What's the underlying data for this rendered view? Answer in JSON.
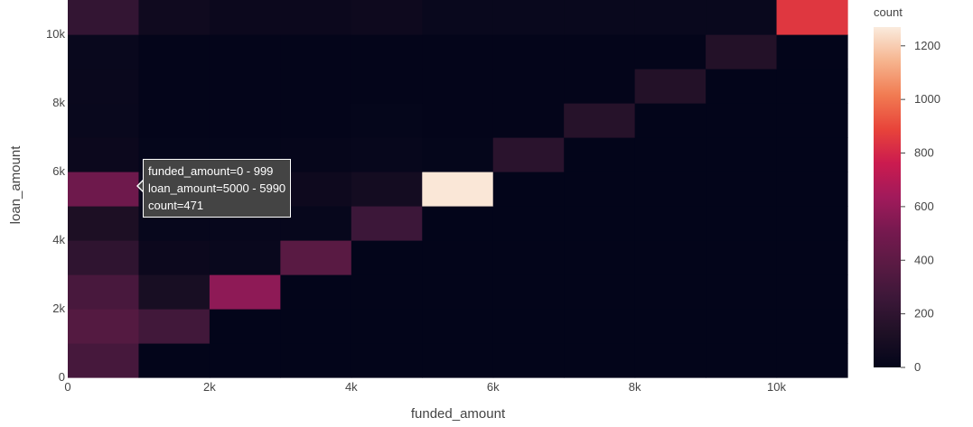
{
  "chart_data": {
    "type": "heatmap",
    "xlabel": "funded_amount",
    "ylabel": "loan_amount",
    "x_bins": [
      0,
      1000,
      2000,
      3000,
      4000,
      5000,
      6000,
      7000,
      8000,
      9000,
      10000,
      11000
    ],
    "y_bins": [
      0,
      1000,
      2000,
      3000,
      4000,
      5000,
      6000,
      7000,
      8000,
      9000,
      10000,
      11000
    ],
    "xlim": [
      0,
      11000
    ],
    "ylim": [
      0,
      11000
    ],
    "x_ticks": [
      {
        "value": 0,
        "label": "0"
      },
      {
        "value": 2000,
        "label": "2k"
      },
      {
        "value": 4000,
        "label": "4k"
      },
      {
        "value": 6000,
        "label": "6k"
      },
      {
        "value": 8000,
        "label": "8k"
      },
      {
        "value": 10000,
        "label": "10k"
      }
    ],
    "y_ticks": [
      {
        "value": 0,
        "label": "0"
      },
      {
        "value": 2000,
        "label": "2k"
      },
      {
        "value": 4000,
        "label": "4k"
      },
      {
        "value": 6000,
        "label": "6k"
      },
      {
        "value": 8000,
        "label": "8k"
      },
      {
        "value": 10000,
        "label": "10k"
      }
    ],
    "z": [
      [
        300,
        0,
        0,
        0,
        0,
        0,
        0,
        0,
        0,
        0,
        0
      ],
      [
        360,
        280,
        0,
        0,
        0,
        0,
        0,
        0,
        0,
        0,
        0
      ],
      [
        310,
        100,
        580,
        0,
        0,
        0,
        0,
        0,
        0,
        0,
        0
      ],
      [
        200,
        40,
        30,
        380,
        0,
        0,
        0,
        0,
        0,
        0,
        0
      ],
      [
        120,
        20,
        20,
        20,
        260,
        0,
        0,
        0,
        0,
        0,
        0
      ],
      [
        471,
        30,
        40,
        50,
        80,
        1260,
        0,
        0,
        0,
        0,
        0
      ],
      [
        40,
        10,
        10,
        15,
        20,
        10,
        180,
        0,
        0,
        0,
        0
      ],
      [
        30,
        5,
        5,
        5,
        10,
        5,
        5,
        160,
        0,
        0,
        0
      ],
      [
        35,
        5,
        5,
        5,
        5,
        5,
        5,
        5,
        150,
        0,
        0
      ],
      [
        30,
        5,
        5,
        5,
        5,
        5,
        5,
        5,
        5,
        150,
        0
      ],
      [
        220,
        60,
        40,
        40,
        50,
        30,
        30,
        30,
        30,
        30,
        850
      ]
    ],
    "colorscale_name": "rocket",
    "colorbar": {
      "title": "count",
      "zmin": 0,
      "zmax": 1270,
      "ticks": [
        {
          "value": 0,
          "label": "0"
        },
        {
          "value": 200,
          "label": "200"
        },
        {
          "value": 400,
          "label": "400"
        },
        {
          "value": 600,
          "label": "600"
        },
        {
          "value": 800,
          "label": "800"
        },
        {
          "value": 1000,
          "label": "1000"
        },
        {
          "value": 1200,
          "label": "1200"
        }
      ]
    },
    "colorscale": [
      [
        0.0,
        "#03051a"
      ],
      [
        0.1,
        "#1e1025"
      ],
      [
        0.2,
        "#3b1738"
      ],
      [
        0.3,
        "#591a43"
      ],
      [
        0.4,
        "#76194f"
      ],
      [
        0.5,
        "#a11a5b"
      ],
      [
        0.6,
        "#cb1b4f"
      ],
      [
        0.7,
        "#e8443a"
      ],
      [
        0.8,
        "#f17b52"
      ],
      [
        0.9,
        "#f6b48e"
      ],
      [
        1.0,
        "#faebdd"
      ]
    ],
    "hover": {
      "line1": "funded_amount=0 - 999",
      "line2": "loan_amount=5000 - 5990",
      "line3": "count=471"
    }
  }
}
